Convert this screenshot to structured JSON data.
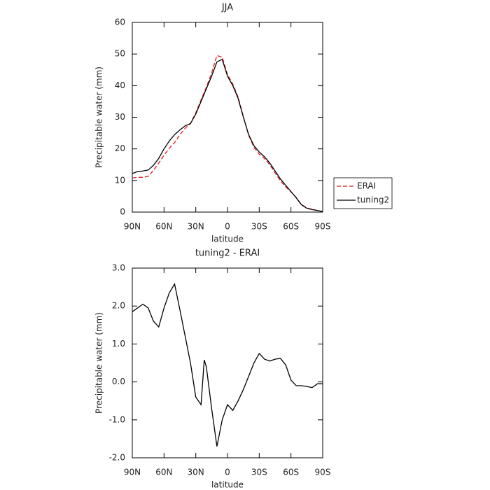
{
  "chart_data": [
    {
      "type": "line",
      "title": "JJA",
      "x_label": "latitude",
      "y_label": "Precipitable water (mm)",
      "x": [
        90,
        85,
        80,
        75,
        70,
        65,
        60,
        55,
        50,
        45,
        40,
        35,
        30,
        25,
        20,
        15,
        10,
        5,
        0,
        -5,
        -10,
        -15,
        -20,
        -25,
        -30,
        -35,
        -40,
        -45,
        -50,
        -55,
        -60,
        -65,
        -70,
        -75,
        -80,
        -85,
        -90
      ],
      "xlim": [
        90,
        -90
      ],
      "xticks": [
        {
          "value": 90,
          "label": "90N"
        },
        {
          "value": 60,
          "label": "60N"
        },
        {
          "value": 30,
          "label": "30N"
        },
        0,
        {
          "value": -30,
          "label": "30S"
        },
        {
          "value": -60,
          "label": "60S"
        },
        {
          "value": -90,
          "label": "90S"
        }
      ],
      "ylim": [
        0,
        60
      ],
      "yticks": [
        0,
        10,
        20,
        30,
        40,
        50,
        60
      ],
      "legend": "right",
      "series": [
        {
          "name": "ERAI",
          "color": "#e41a1c",
          "dashed": true,
          "values": [
            10.8,
            11.0,
            11.0,
            11.3,
            13.2,
            15.5,
            18.0,
            20.2,
            22.0,
            24.5,
            26.5,
            28.0,
            31.4,
            35.5,
            39.5,
            44.0,
            49.5,
            49.0,
            43.5,
            40.5,
            36.4,
            30.2,
            24.3,
            20.5,
            18.3,
            16.9,
            15.0,
            12.4,
            9.9,
            8.0,
            6.4,
            4.6,
            2.4,
            1.3,
            0.9,
            0.5,
            0.2
          ]
        },
        {
          "name": "tuning2",
          "color": "#000000",
          "dashed": false,
          "values": [
            12.2,
            12.8,
            13.0,
            13.3,
            14.8,
            17.0,
            20.0,
            22.5,
            24.5,
            26.0,
            27.3,
            28.0,
            31.0,
            35.0,
            39.0,
            43.0,
            47.5,
            48.3,
            43.0,
            40.0,
            36.0,
            30.0,
            24.5,
            21.0,
            19.0,
            17.5,
            15.5,
            13.0,
            10.5,
            8.5,
            6.5,
            4.5,
            2.3,
            1.2,
            0.8,
            0.5,
            0.2
          ]
        }
      ]
    },
    {
      "type": "line",
      "title": "tuning2 - ERAI",
      "x_label": "latitude",
      "y_label": "Precipitable water (mm)",
      "x": [
        90,
        85,
        80,
        75,
        70,
        65,
        60,
        55,
        50,
        45,
        40,
        35,
        30,
        25,
        22,
        20,
        15,
        10,
        5,
        0,
        -5,
        -10,
        -15,
        -20,
        -25,
        -30,
        -35,
        -40,
        -45,
        -50,
        -55,
        -60,
        -65,
        -70,
        -75,
        -80,
        -85,
        -90
      ],
      "xlim": [
        90,
        -90
      ],
      "xticks": [
        {
          "value": 90,
          "label": "90N"
        },
        {
          "value": 60,
          "label": "60N"
        },
        {
          "value": 30,
          "label": "30N"
        },
        0,
        {
          "value": -30,
          "label": "30S"
        },
        {
          "value": -60,
          "label": "60S"
        },
        {
          "value": -90,
          "label": "90S"
        }
      ],
      "ylim": [
        -2,
        3
      ],
      "yticks": [
        {
          "value": -2,
          "label": "-2.0"
        },
        {
          "value": -1,
          "label": "-1.0"
        },
        {
          "value": 0,
          "label": "0.0"
        },
        {
          "value": 1,
          "label": "1.0"
        },
        {
          "value": 2,
          "label": "2.0"
        },
        {
          "value": 3,
          "label": "3.0"
        }
      ],
      "series": [
        {
          "color": "#000000",
          "dashed": false,
          "values": [
            1.85,
            1.95,
            2.05,
            1.95,
            1.6,
            1.45,
            1.95,
            2.35,
            2.58,
            1.9,
            1.2,
            0.5,
            -0.4,
            -0.6,
            0.58,
            0.4,
            -0.7,
            -1.7,
            -1.0,
            -0.6,
            -0.75,
            -0.5,
            -0.2,
            0.15,
            0.5,
            0.75,
            0.6,
            0.55,
            0.6,
            0.62,
            0.45,
            0.05,
            -0.1,
            -0.1,
            -0.12,
            -0.15,
            -0.05,
            -0.05
          ]
        }
      ]
    }
  ]
}
